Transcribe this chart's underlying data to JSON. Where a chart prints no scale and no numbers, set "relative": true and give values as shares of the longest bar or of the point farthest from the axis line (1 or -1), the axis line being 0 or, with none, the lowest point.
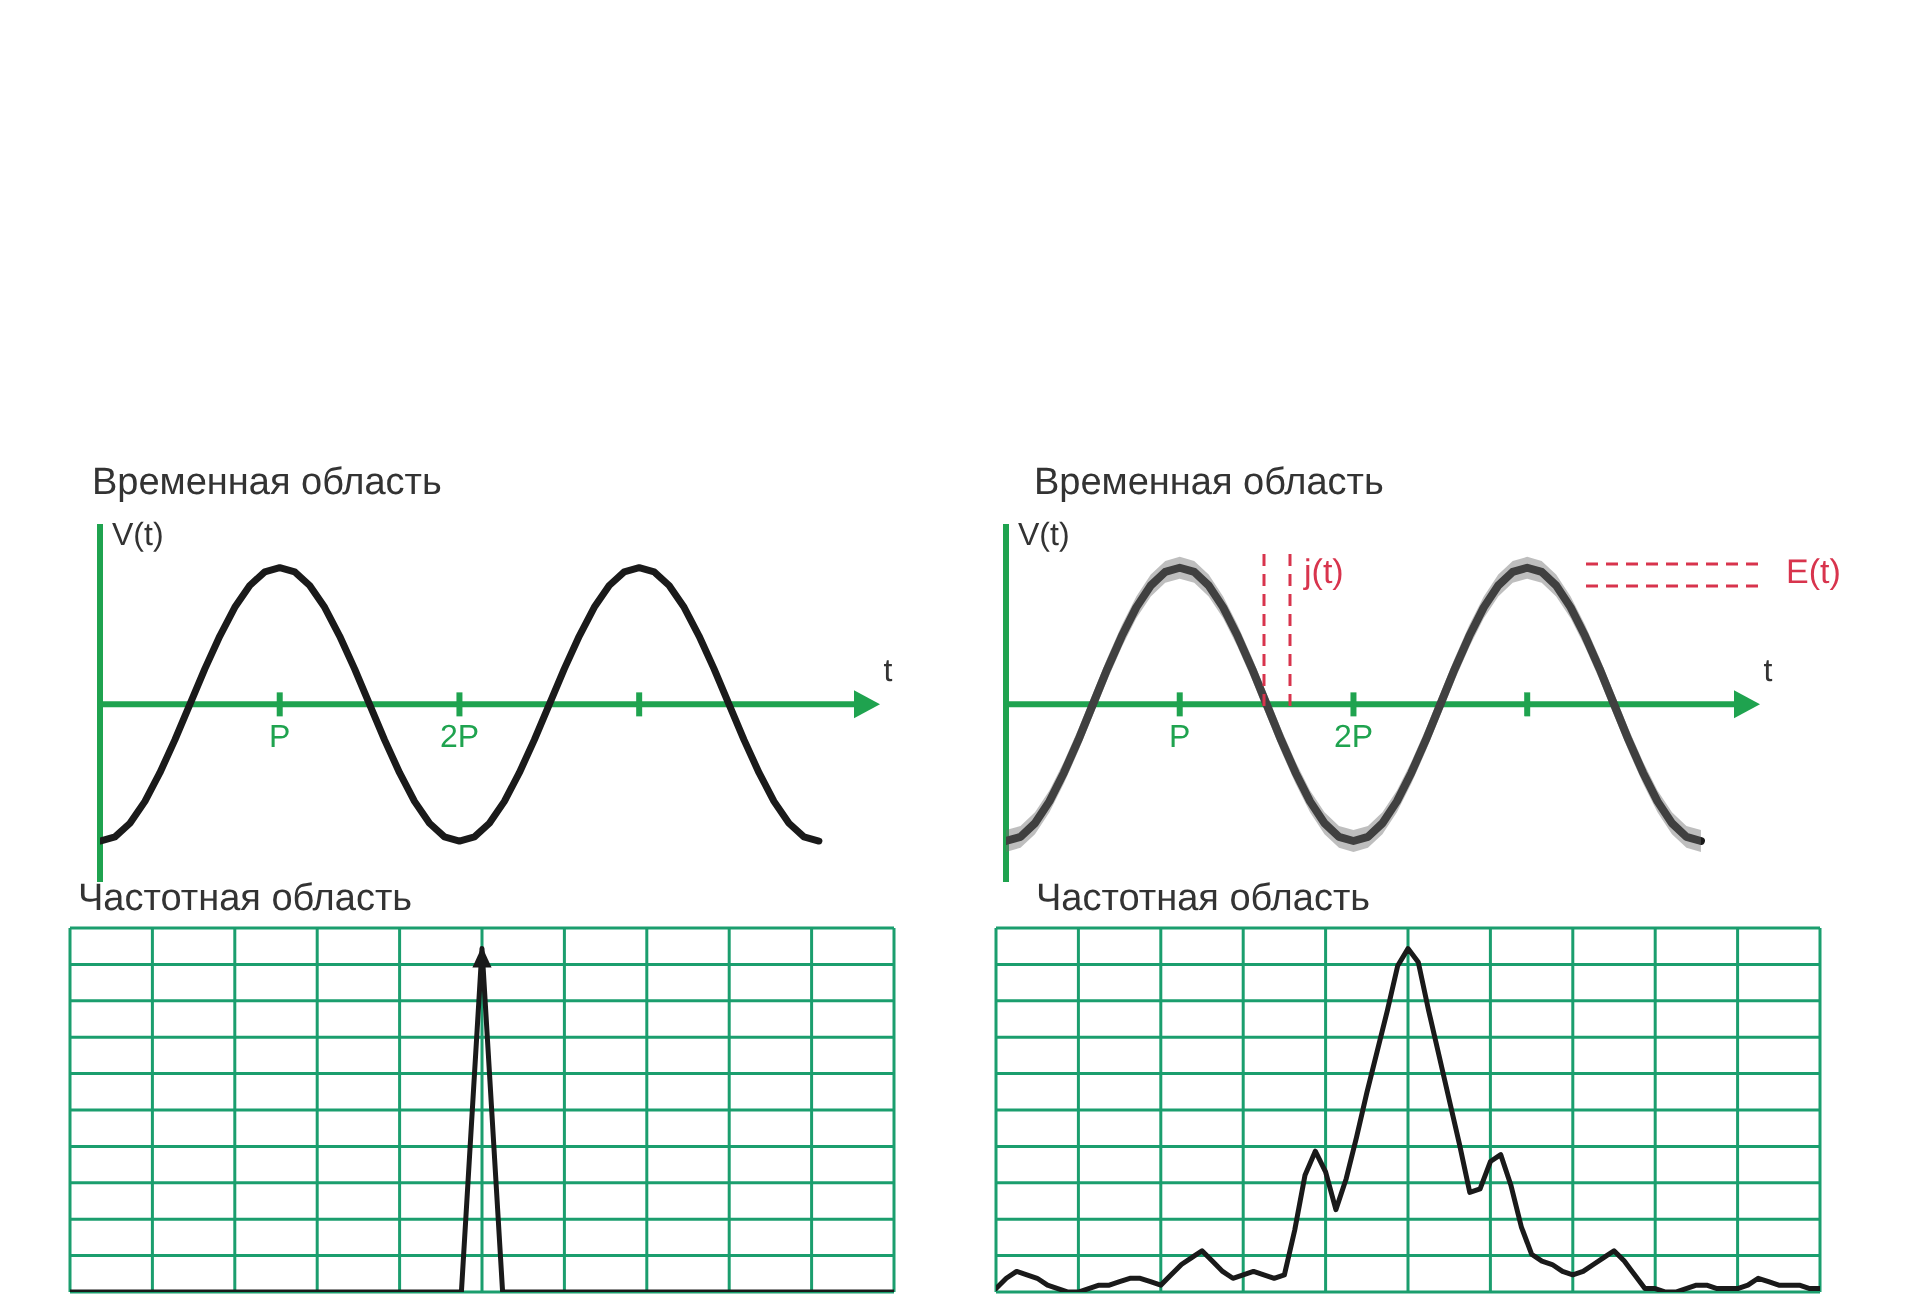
{
  "chart_data": [
    {
      "type": "line",
      "title": "Временная область",
      "xlabel": "t",
      "ylabel": "V(t)",
      "relative": true,
      "marker": "none",
      "categories": [
        null,
        null,
        null,
        null,
        null,
        null,
        null,
        null,
        null,
        null,
        null,
        null,
        "P",
        null,
        null,
        null,
        null,
        null,
        null,
        null,
        null,
        null,
        null,
        null,
        "2P",
        null,
        null,
        null,
        null,
        null,
        null,
        null,
        null,
        null,
        null,
        null,
        null,
        null,
        null,
        null,
        null,
        null,
        null,
        null,
        null,
        null,
        null,
        null,
        null
      ],
      "series": [
        {
          "color": "#1a1a1a",
          "values": [
            -1,
            -0.97,
            -0.87,
            -0.71,
            -0.5,
            -0.26,
            0,
            0.26,
            0.5,
            0.71,
            0.87,
            0.97,
            1,
            0.97,
            0.87,
            0.71,
            0.5,
            0.26,
            0,
            -0.26,
            -0.5,
            -0.71,
            -0.87,
            -0.97,
            -1,
            -0.97,
            -0.87,
            -0.71,
            -0.5,
            -0.26,
            0,
            0.26,
            0.5,
            0.71,
            0.87,
            0.97,
            1,
            0.97,
            0.87,
            0.71,
            0.5,
            0.26,
            0,
            -0.26,
            -0.5,
            -0.71,
            -0.87,
            -0.97,
            -1
          ]
        }
      ]
    },
    {
      "type": "line",
      "title": "Временная область",
      "xlabel": "t",
      "ylabel": "V(t)",
      "relative": true,
      "marker": "none",
      "annotations": [
        "j(t)",
        "E(t)"
      ],
      "categories": [
        null,
        null,
        null,
        null,
        null,
        null,
        null,
        null,
        null,
        null,
        null,
        null,
        "P",
        null,
        null,
        null,
        null,
        null,
        null,
        null,
        null,
        null,
        null,
        null,
        "2P",
        null,
        null,
        null,
        null,
        null,
        null,
        null,
        null,
        null,
        null,
        null,
        null,
        null,
        null,
        null,
        null,
        null,
        null,
        null,
        null,
        null,
        null,
        null,
        null
      ],
      "series": [
        {
          "color": "#1a1a1a",
          "values": [
            -1,
            -0.97,
            -0.87,
            -0.71,
            -0.5,
            -0.26,
            0,
            0.26,
            0.5,
            0.71,
            0.87,
            0.97,
            1,
            0.97,
            0.87,
            0.71,
            0.5,
            0.26,
            0,
            -0.26,
            -0.5,
            -0.71,
            -0.87,
            -0.97,
            -1,
            -0.97,
            -0.87,
            -0.71,
            -0.5,
            -0.26,
            0,
            0.26,
            0.5,
            0.71,
            0.87,
            0.97,
            1,
            0.97,
            0.87,
            0.71,
            0.5,
            0.26,
            0,
            -0.26,
            -0.5,
            -0.71,
            -0.87,
            -0.97,
            -1
          ],
          "lower": [
            -1.08,
            -1.05,
            -0.95,
            -0.79,
            -0.58,
            -0.34,
            -0.08,
            0.18,
            0.42,
            0.63,
            0.79,
            0.89,
            0.92,
            0.89,
            0.79,
            0.63,
            0.42,
            0.18,
            -0.08,
            -0.34,
            -0.58,
            -0.79,
            -0.95,
            -1.05,
            -1.08,
            -1.05,
            -0.95,
            -0.79,
            -0.58,
            -0.34,
            -0.08,
            0.18,
            0.42,
            0.63,
            0.79,
            0.89,
            0.92,
            0.89,
            0.79,
            0.63,
            0.42,
            0.18,
            -0.08,
            -0.34,
            -0.58,
            -0.79,
            -0.95,
            -1.05,
            -1.08
          ],
          "upper": [
            -0.92,
            -0.89,
            -0.79,
            -0.63,
            -0.42,
            -0.18,
            0.08,
            0.34,
            0.58,
            0.79,
            0.95,
            1.05,
            1.08,
            1.05,
            0.95,
            0.79,
            0.58,
            0.34,
            0.08,
            -0.18,
            -0.42,
            -0.63,
            -0.79,
            -0.89,
            -0.92,
            -0.89,
            -0.79,
            -0.63,
            -0.42,
            -0.18,
            0.08,
            0.34,
            0.58,
            0.79,
            0.95,
            1.05,
            1.08,
            1.05,
            0.95,
            0.79,
            0.58,
            0.34,
            0.08,
            -0.18,
            -0.42,
            -0.63,
            -0.79,
            -0.89,
            -0.92
          ]
        }
      ]
    },
    {
      "type": "line",
      "title": "Частотная область",
      "relative": true,
      "marker": "none",
      "grid": true,
      "categories": [
        null,
        null,
        null,
        null,
        null,
        null,
        null,
        null,
        null,
        null,
        null,
        null,
        null,
        null,
        null,
        null,
        null,
        null,
        null,
        null,
        null,
        null,
        null,
        null,
        null,
        null,
        null,
        null,
        null,
        null,
        null,
        null,
        null,
        null,
        null,
        null,
        null,
        null,
        null,
        null,
        null
      ],
      "series": [
        {
          "color": "#1a1a1a",
          "values": [
            0,
            0,
            0,
            0,
            0,
            0,
            0,
            0,
            0,
            0,
            0,
            0,
            0,
            0,
            0,
            0,
            0,
            0,
            0,
            0,
            1,
            0,
            0,
            0,
            0,
            0,
            0,
            0,
            0,
            0,
            0,
            0,
            0,
            0,
            0,
            0,
            0,
            0,
            0,
            0,
            0
          ]
        }
      ]
    },
    {
      "type": "line",
      "title": "Частотная область",
      "relative": true,
      "marker": "none",
      "grid": true,
      "categories": [
        null,
        null,
        null,
        null,
        null,
        null,
        null,
        null,
        null,
        null,
        null,
        null,
        null,
        null,
        null,
        null,
        null,
        null,
        null,
        null,
        null,
        null,
        null,
        null,
        null,
        null,
        null,
        null,
        null,
        null,
        null,
        null,
        null,
        null,
        null,
        null,
        null,
        null,
        null,
        null,
        null,
        null,
        null,
        null,
        null,
        null,
        null,
        null,
        null,
        null,
        null,
        null,
        null,
        null,
        null,
        null,
        null,
        null,
        null,
        null,
        null,
        null,
        null,
        null,
        null,
        null,
        null,
        null,
        null,
        null,
        null,
        null,
        null,
        null,
        null,
        null,
        null,
        null,
        null,
        null,
        null
      ],
      "series": [
        {
          "color": "#1a1a1a",
          "values": [
            0.01,
            0.04,
            0.06,
            0.05,
            0.04,
            0.02,
            0.01,
            0,
            0,
            0.01,
            0.02,
            0.02,
            0.03,
            0.04,
            0.04,
            0.03,
            0.02,
            0.05,
            0.08,
            0.1,
            0.12,
            0.09,
            0.06,
            0.04,
            0.05,
            0.06,
            0.05,
            0.04,
            0.05,
            0.18,
            0.34,
            0.41,
            0.35,
            0.24,
            0.33,
            0.45,
            0.58,
            0.7,
            0.82,
            0.95,
            1,
            0.96,
            0.82,
            0.69,
            0.56,
            0.43,
            0.29,
            0.3,
            0.38,
            0.4,
            0.31,
            0.19,
            0.11,
            0.09,
            0.08,
            0.06,
            0.05,
            0.06,
            0.08,
            0.1,
            0.12,
            0.09,
            0.05,
            0.01,
            0.01,
            0,
            0,
            0.01,
            0.02,
            0.02,
            0.01,
            0.01,
            0.01,
            0.02,
            0.04,
            0.03,
            0.02,
            0.02,
            0.02,
            0.01,
            0.01
          ]
        }
      ]
    }
  ]
}
